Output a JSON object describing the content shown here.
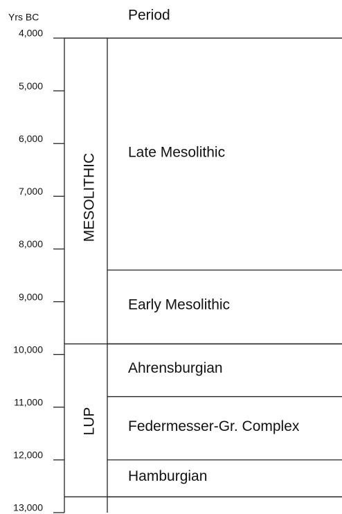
{
  "chart_data": {
    "type": "timeline",
    "axis_label": "Yrs BC",
    "column_label": "Period",
    "ylim": [
      4000,
      13000
    ],
    "yticks": [
      {
        "value": 4000,
        "label": "4,000"
      },
      {
        "value": 5000,
        "label": "5,000"
      },
      {
        "value": 6000,
        "label": "6,000"
      },
      {
        "value": 7000,
        "label": "7,000"
      },
      {
        "value": 8000,
        "label": "8,000"
      },
      {
        "value": 9000,
        "label": "9,000"
      },
      {
        "value": 10000,
        "label": "10,000"
      },
      {
        "value": 11000,
        "label": "11,000"
      },
      {
        "value": 12000,
        "label": "12,000"
      },
      {
        "value": 13000,
        "label": "13,000"
      }
    ],
    "groups": [
      {
        "name": "MESOLITHIC",
        "start": 4000,
        "end": 9800
      },
      {
        "name": "LUP",
        "start": 9800,
        "end": 12700
      }
    ],
    "periods": [
      {
        "name": "Late Mesolithic",
        "start": 4000,
        "end": 8400
      },
      {
        "name": "Early Mesolithic",
        "start": 8400,
        "end": 9800
      },
      {
        "name": "Ahrensburgian",
        "start": 9800,
        "end": 10800
      },
      {
        "name": "Federmesser-Gr. Complex",
        "start": 10800,
        "end": 12000
      },
      {
        "name": "Hamburgian",
        "start": 12000,
        "end": 12700
      }
    ]
  }
}
